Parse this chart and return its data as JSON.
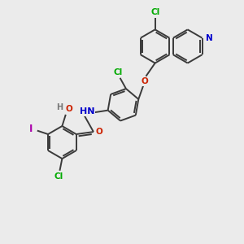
{
  "bg_color": "#ebebeb",
  "bond_color": "#3a3a3a",
  "line_width": 1.4,
  "atom_colors": {
    "Cl": "#00aa00",
    "N": "#0000cc",
    "O": "#cc2200",
    "I": "#aa00aa",
    "H": "#777777",
    "C": "#3a3a3a"
  },
  "font_size_atom": 7.5,
  "figsize": [
    3.0,
    3.0
  ],
  "dpi": 100
}
